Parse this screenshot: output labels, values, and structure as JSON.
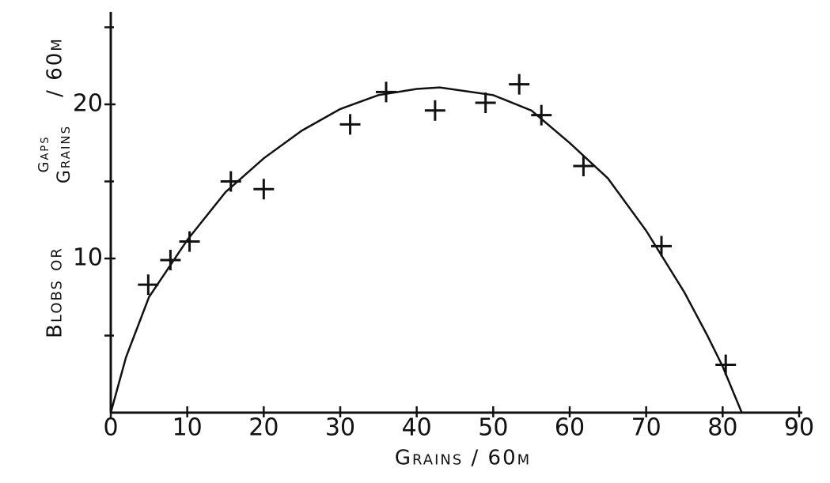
{
  "chart_data": {
    "type": "scatter",
    "x_label": "Grains / 60μ",
    "y_label_parts": [
      "Blobs or",
      "Gaps",
      "Grains",
      "/ 60μ"
    ],
    "x": [
      4.9,
      7.8,
      10.3,
      15.7,
      20.0,
      31.3,
      36.0,
      42.4,
      49.0,
      53.4,
      56.3,
      61.8,
      72.0,
      80.4
    ],
    "values": [
      8.3,
      9.9,
      11.1,
      15.0,
      14.5,
      18.7,
      20.8,
      19.6,
      20.1,
      21.3,
      19.3,
      16.0,
      10.8,
      3.1
    ],
    "color": "#111111",
    "curve": {
      "x": [
        0,
        2,
        5,
        10,
        15,
        20,
        25,
        30,
        35,
        40,
        43,
        50,
        55,
        60,
        65,
        70,
        75,
        78,
        80,
        82.5
      ],
      "y": [
        0,
        3.6,
        7.5,
        11.2,
        14.3,
        16.5,
        18.3,
        19.7,
        20.6,
        21.0,
        21.1,
        20.6,
        19.6,
        17.5,
        15.2,
        11.8,
        7.8,
        5.0,
        3.0,
        0
      ]
    },
    "xlim": [
      0,
      93
    ],
    "ylim": [
      0,
      26
    ],
    "xticks": [
      0,
      10,
      20,
      30,
      40,
      50,
      60,
      70,
      80,
      90
    ],
    "yticks": [
      10,
      20
    ],
    "yminorticks": [
      5,
      15,
      25
    ]
  }
}
